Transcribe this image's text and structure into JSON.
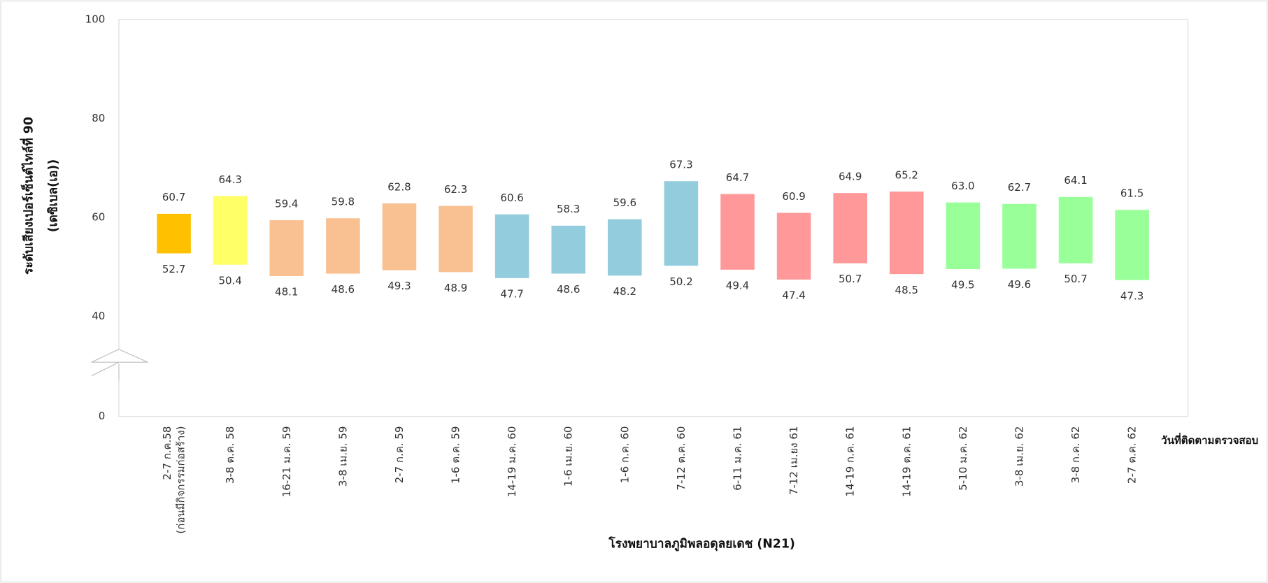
{
  "chart_data": {
    "type": "floating-bar",
    "y_label": [
      "ระดับเสียงเปอร์เซ็นต์ไทล์ที่ 90",
      "(เดซิเบล(เอ))"
    ],
    "x_label": "โรงพยาบาลภูมิพลอดุลยเดช (N21)",
    "x_axis_title": "วันที่ติดตามตรวจสอบ",
    "categories": [
      "2-7 ก.ค.58\n(ก่อนมีกิจกรรมก่อสร้าง)",
      "3-8 ต.ค. 58",
      "16-21 ม.ค. 59",
      "3-8 เม.ย. 59",
      "2-7 ก.ค. 59",
      "1-6 ต.ค. 59",
      "14-19 ม.ค. 60",
      "1-6 เม.ย. 60",
      "1-6 ก.ค. 60",
      "7-12 ต.ค. 60",
      "6-11 ม.ค. 61",
      "7-12 เม.ยง 61",
      "14-19 ก.ค. 61",
      "14-19 ต.ค. 61",
      "5-10 ม.ค. 62",
      "3-8 เม.ย. 62",
      "3-8 ก.ค. 62",
      "2-7 ต.ค. 62"
    ],
    "low": [
      52.7,
      50.4,
      48.1,
      48.6,
      49.3,
      48.9,
      47.7,
      48.6,
      48.2,
      50.2,
      49.4,
      47.4,
      50.7,
      48.5,
      49.5,
      49.6,
      50.7,
      47.3
    ],
    "high": [
      60.7,
      64.3,
      59.4,
      59.8,
      62.8,
      62.3,
      60.6,
      58.3,
      59.6,
      67.3,
      64.7,
      60.9,
      64.9,
      65.2,
      63,
      62.7,
      64.1,
      61.5
    ],
    "low_value_labels": [
      "52.7",
      "50.4",
      "48.1",
      "48.6",
      "49.3",
      "48.9",
      "47.7",
      "48.6",
      "48.2",
      "50.2",
      "49.4",
      "47.4",
      "50.7",
      "48.5",
      "49.5",
      "49.6",
      "50.7",
      "47.3"
    ],
    "high_value_labels": [
      "60.7",
      "64.3",
      "59.4",
      "59.8",
      "62.8",
      "62.3",
      "60.6",
      "58.3",
      "59.6",
      "67.3",
      "64.7",
      "60.9",
      "64.9",
      "65.2",
      "63.0",
      "62.7",
      "64.1",
      "61.5"
    ],
    "colors": [
      "#FFC000",
      "#FFFF66",
      "#F9C091",
      "#F9C091",
      "#F9C091",
      "#F9C091",
      "#93CDDD",
      "#93CDDD",
      "#93CDDD",
      "#93CDDD",
      "#FF9999",
      "#FF9999",
      "#FF9999",
      "#FF9999",
      "#99FF99",
      "#99FF99",
      "#99FF99",
      "#99FF99"
    ],
    "ylim": [
      0,
      100
    ],
    "yticks": [
      0,
      40,
      60,
      80,
      100
    ],
    "axis_break": [
      0,
      40
    ]
  }
}
